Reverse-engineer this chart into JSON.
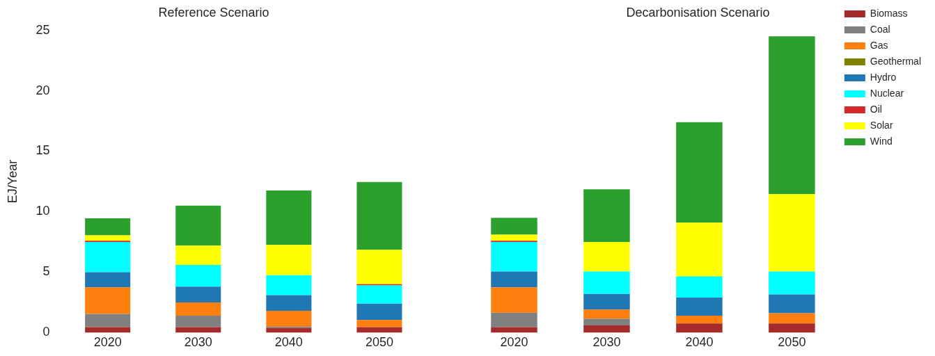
{
  "chart_data": [
    {
      "type": "bar",
      "title": "Reference Scenario",
      "ylabel": "EJ/Year",
      "stacked": true,
      "categories": [
        "2020",
        "2030",
        "2040",
        "2050"
      ],
      "ylim": [
        0,
        25
      ],
      "yticks": [
        0,
        5,
        10,
        15,
        20,
        25
      ],
      "grid": false,
      "legend": false,
      "series": [
        {
          "color": "#a52a2a",
          "values": [
            0.45,
            0.45,
            0.4,
            0.45
          ]
        },
        {
          "color": "#808080",
          "values": [
            1.1,
            0.95,
            0.1,
            0
          ]
        },
        {
          "color": "#ff7f0e",
          "values": [
            2.2,
            1.1,
            1.3,
            0.6
          ]
        },
        {
          "color": "#808000",
          "values": [
            0,
            0,
            0,
            0
          ]
        },
        {
          "color": "#1f77b4",
          "values": [
            1.25,
            1.3,
            1.3,
            1.35
          ]
        },
        {
          "color": "#00ffff",
          "values": [
            2.5,
            1.8,
            1.65,
            1.5
          ]
        },
        {
          "color": "#d62728",
          "values": [
            0.1,
            0,
            0,
            0.1
          ]
        },
        {
          "color": "#ffff00",
          "values": [
            0.45,
            1.6,
            2.5,
            2.85
          ]
        },
        {
          "color": "#2ca02c",
          "values": [
            1.4,
            3.3,
            4.5,
            5.6
          ]
        }
      ]
    },
    {
      "type": "bar",
      "title": "Decarbonisation Scenario",
      "stacked": true,
      "categories": [
        "2020",
        "2030",
        "2040",
        "2050"
      ],
      "ylim": [
        0,
        25
      ],
      "yticks": [
        0,
        5,
        10,
        15,
        20,
        25
      ],
      "tick_labels": "x",
      "grid": false,
      "legend": "top right",
      "series": [
        {
          "name": "Biomass",
          "color": "#a52a2a",
          "values": [
            0.45,
            0.6,
            0.75,
            0.75
          ]
        },
        {
          "name": "Coal",
          "color": "#808080",
          "values": [
            1.2,
            0.55,
            0,
            0
          ]
        },
        {
          "name": "Gas",
          "color": "#ff7f0e",
          "values": [
            2.1,
            0.75,
            0.65,
            0.85
          ]
        },
        {
          "name": "Geothermal",
          "color": "#808000",
          "values": [
            0,
            0,
            0,
            0
          ]
        },
        {
          "name": "Hydro",
          "color": "#1f77b4",
          "values": [
            1.3,
            1.3,
            1.5,
            1.55
          ]
        },
        {
          "name": "Nuclear",
          "color": "#00ffff",
          "values": [
            2.45,
            1.85,
            1.75,
            1.9
          ]
        },
        {
          "name": "Oil",
          "color": "#d62728",
          "values": [
            0.1,
            0,
            0,
            0
          ]
        },
        {
          "name": "Solar",
          "color": "#ffff00",
          "values": [
            0.5,
            2.45,
            4.45,
            6.4
          ]
        },
        {
          "name": "Wind",
          "color": "#2ca02c",
          "values": [
            1.4,
            4.35,
            8.3,
            13.05
          ]
        }
      ]
    }
  ]
}
